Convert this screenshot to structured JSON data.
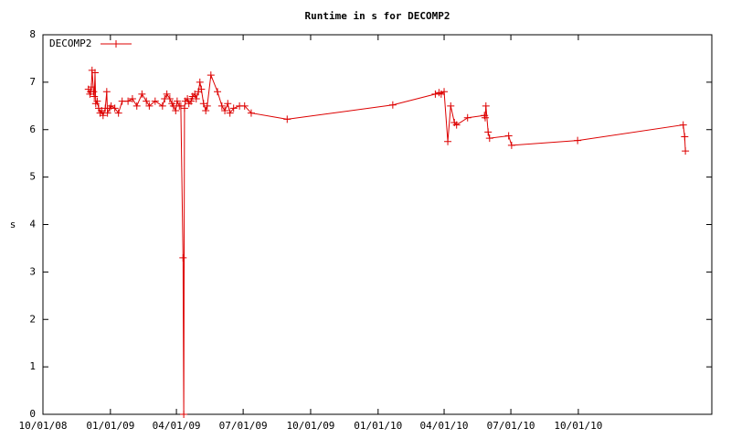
{
  "chart_data": {
    "type": "line",
    "title": "Runtime in s for DECOMP2",
    "y_label": "s",
    "legend_position": "upper left",
    "x": [
      "2008-12-02",
      "2008-12-04",
      "2008-12-05",
      "2008-12-06",
      "2008-12-07",
      "2008-12-09",
      "2008-12-10",
      "2008-12-11",
      "2008-12-12",
      "2008-12-14",
      "2008-12-16",
      "2008-12-18",
      "2008-12-20",
      "2008-12-22",
      "2008-12-25",
      "2008-12-27",
      "2008-12-28",
      "2008-12-31",
      "2009-01-02",
      "2009-01-07",
      "2009-01-12",
      "2009-01-17",
      "2009-01-25",
      "2009-01-31",
      "2009-02-06",
      "2009-02-13",
      "2009-02-19",
      "2009-02-23",
      "2009-03-03",
      "2009-03-13",
      "2009-03-16",
      "2009-03-19",
      "2009-03-23",
      "2009-03-26",
      "2009-03-28",
      "2009-03-31",
      "2009-04-02",
      "2009-04-05",
      "2009-04-07",
      "2009-04-10",
      "2009-04-11",
      "2009-04-12",
      "2009-04-13",
      "2009-04-16",
      "2009-04-18",
      "2009-04-21",
      "2009-04-23",
      "2009-04-26",
      "2009-04-28",
      "2009-05-01",
      "2009-05-03",
      "2009-05-05",
      "2009-05-08",
      "2009-05-11",
      "2009-05-13",
      "2009-05-18",
      "2009-05-27",
      "2009-06-02",
      "2009-06-06",
      "2009-06-10",
      "2009-06-13",
      "2009-06-18",
      "2009-06-26",
      "2009-07-03",
      "2009-07-12",
      "2009-08-30",
      "2010-01-21",
      "2010-03-20",
      "2010-03-25",
      "2010-03-28",
      "2010-04-01",
      "2010-04-06",
      "2010-04-10",
      "2010-04-15",
      "2010-04-18",
      "2010-05-03",
      "2010-05-26",
      "2010-05-27",
      "2010-05-28",
      "2010-05-31",
      "2010-06-02",
      "2010-06-28",
      "2010-07-02",
      "2010-09-30",
      "2011-02-21",
      "2011-02-23",
      "2011-02-24"
    ],
    "series": [
      {
        "name": "DECOMP2",
        "color": "#dd0000",
        "values": [
          6.85,
          6.75,
          6.8,
          6.9,
          7.25,
          6.8,
          6.7,
          7.2,
          6.55,
          6.6,
          6.45,
          6.35,
          6.4,
          6.3,
          6.45,
          6.8,
          6.35,
          6.45,
          6.5,
          6.45,
          6.35,
          6.6,
          6.6,
          6.65,
          6.5,
          6.75,
          6.6,
          6.5,
          6.6,
          6.5,
          6.65,
          6.75,
          6.65,
          6.55,
          6.5,
          6.4,
          6.6,
          6.5,
          6.5,
          3.3,
          0,
          6.45,
          6.6,
          6.65,
          6.55,
          6.6,
          6.7,
          6.75,
          6.65,
          6.8,
          7.0,
          6.85,
          6.55,
          6.4,
          6.5,
          7.15,
          6.8,
          6.5,
          6.4,
          6.55,
          6.35,
          6.45,
          6.5,
          6.5,
          6.35,
          6.22,
          6.52,
          6.75,
          6.78,
          6.75,
          6.8,
          5.75,
          6.5,
          6.15,
          6.1,
          6.25,
          6.3,
          6.25,
          6.5,
          5.95,
          5.82,
          5.87,
          5.67,
          5.77,
          6.1,
          5.85,
          5.55
        ]
      }
    ],
    "xlim": [
      "2008-10-01",
      "2011-04-01"
    ],
    "xticks": [
      {
        "value": "2008-10-01",
        "label": "10/01/08"
      },
      {
        "value": "2009-01-01",
        "label": "01/01/09"
      },
      {
        "value": "2009-04-01",
        "label": "04/01/09"
      },
      {
        "value": "2009-07-01",
        "label": "07/01/09"
      },
      {
        "value": "2009-10-01",
        "label": "10/01/09"
      },
      {
        "value": "2010-01-01",
        "label": "01/01/10"
      },
      {
        "value": "2010-04-01",
        "label": "04/01/10"
      },
      {
        "value": "2010-07-01",
        "label": "07/01/10"
      },
      {
        "value": "2010-10-01",
        "label": "10/01/10"
      }
    ],
    "ylim": [
      0,
      8
    ],
    "yticks": [
      0,
      1,
      2,
      3,
      4,
      5,
      6,
      7,
      8
    ]
  }
}
